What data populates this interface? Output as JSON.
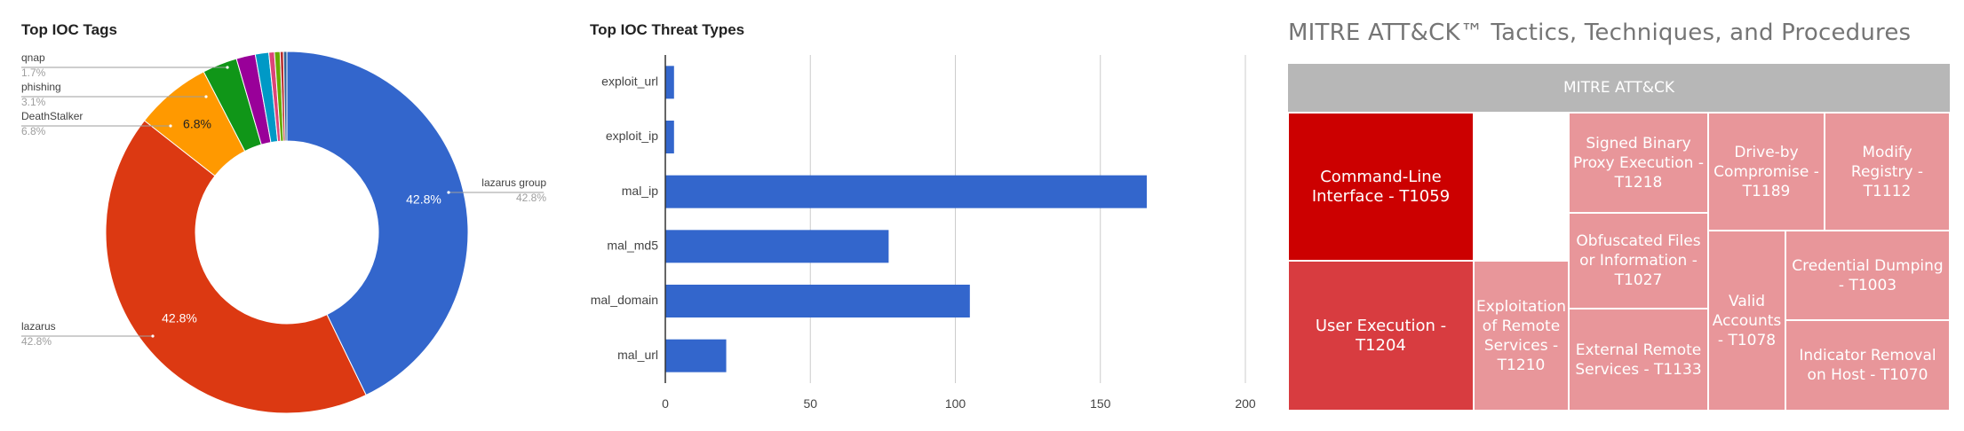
{
  "donut": {
    "title": "Top IOC Tags",
    "slices": [
      {
        "label": "lazarus group",
        "pct": "42.8%",
        "value": 42.8,
        "color": "#3366cc",
        "inner_label": "42.8%"
      },
      {
        "label": "lazarus",
        "pct": "42.8%",
        "value": 42.8,
        "color": "#dc3912",
        "inner_label": "42.8%"
      },
      {
        "label": "DeathStalker",
        "pct": "6.8%",
        "value": 6.8,
        "color": "#ff9900",
        "inner_label": "6.8%"
      },
      {
        "label": "phishing",
        "pct": "3.1%",
        "value": 3.1,
        "color": "#109618",
        "inner_label": ""
      },
      {
        "label": "qnap",
        "pct": "1.7%",
        "value": 1.7,
        "color": "#990099",
        "inner_label": ""
      },
      {
        "label": "",
        "pct": "",
        "value": 1.2,
        "color": "#0099c6",
        "inner_label": ""
      },
      {
        "label": "",
        "pct": "",
        "value": 0.5,
        "color": "#dd4477",
        "inner_label": ""
      },
      {
        "label": "",
        "pct": "",
        "value": 0.5,
        "color": "#66aa00",
        "inner_label": ""
      },
      {
        "label": "",
        "pct": "",
        "value": 0.3,
        "color": "#b82e2e",
        "inner_label": ""
      },
      {
        "label": "",
        "pct": "",
        "value": 0.3,
        "color": "#316395",
        "inner_label": ""
      }
    ]
  },
  "chart_data": {
    "type": "bar",
    "title": "Top IOC Threat Types",
    "orientation": "horizontal",
    "categories": [
      "exploit_url",
      "exploit_ip",
      "mal_ip",
      "mal_md5",
      "mal_domain",
      "mal_url"
    ],
    "values": [
      3,
      3,
      166,
      77,
      105,
      21
    ],
    "xlim": [
      0,
      200
    ],
    "xticks": [
      "0",
      "50",
      "100",
      "150",
      "200"
    ],
    "color": "#3366cc",
    "grid": true,
    "legend": "none"
  },
  "mitre": {
    "title": "MITRE ATT&CK™ Tactics, Techniques, and Procedures",
    "header": "MITRE ATT&CK",
    "cells": [
      {
        "label": "Command-Line Interface - T1059",
        "color": "#cc0000"
      },
      {
        "label": "User Execution - T1204",
        "color": "#d83c40"
      },
      {
        "label": "Exploitation of Remote Services - T1210",
        "color": "#e8969a"
      },
      {
        "label": "Signed Binary Proxy Execution - T1218",
        "color": "#e8969a"
      },
      {
        "label": "Obfuscated Files or Information - T1027",
        "color": "#e8969a"
      },
      {
        "label": "External Remote Services - T1133",
        "color": "#e8969a"
      },
      {
        "label": "Drive-by Compromise - T1189",
        "color": "#e8969a"
      },
      {
        "label": "Modify Registry - T1112",
        "color": "#e8969a"
      },
      {
        "label": "Valid Accounts - T1078",
        "color": "#e8969a"
      },
      {
        "label": "Credential Dumping - T1003",
        "color": "#e8969a"
      },
      {
        "label": "Indicator Removal on Host - T1070",
        "color": "#e8969a"
      }
    ]
  }
}
